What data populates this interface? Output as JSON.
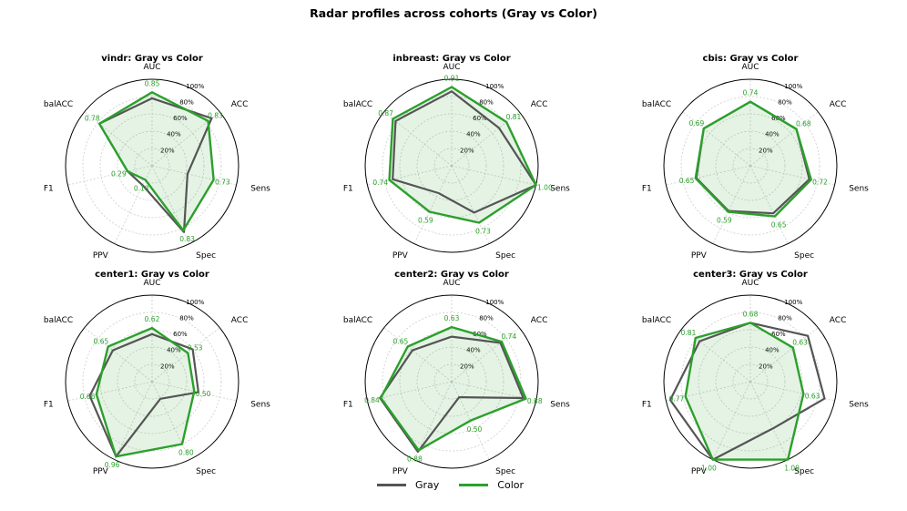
{
  "figure_title": "Radar profiles across cohorts (Gray vs Color)",
  "legend": {
    "gray_label": "Gray",
    "color_label": "Color"
  },
  "colors": {
    "gray": "#555555",
    "color": "#2ca02c",
    "fill": "#2ca02c",
    "grid": "#cccccc",
    "ring": "#000000"
  },
  "chart_data": [
    {
      "type": "radar",
      "title": "vindr: Gray vs Color",
      "axes": [
        "AUC",
        "ACC",
        "Sens",
        "Spec",
        "PPV",
        "F1",
        "balACC"
      ],
      "radial_ticks": [
        "20%",
        "40%",
        "60%",
        "80%",
        "100%"
      ],
      "rlim": [
        0,
        1
      ],
      "series": [
        {
          "name": "Gray",
          "values": [
            0.78,
            0.88,
            0.42,
            0.85,
            0.25,
            0.29,
            0.78
          ]
        },
        {
          "name": "Color",
          "values": [
            0.85,
            0.83,
            0.73,
            0.83,
            0.18,
            0.29,
            0.78
          ]
        }
      ],
      "value_labels": [
        "0.85",
        "0.83",
        "0.73",
        "0.83",
        "0.18",
        "0.29",
        "0.78"
      ]
    },
    {
      "type": "radar",
      "title": "inbreast: Gray vs Color",
      "axes": [
        "AUC",
        "ACC",
        "Sens",
        "Spec",
        "PPV",
        "F1",
        "balACC"
      ],
      "radial_ticks": [
        "20%",
        "40%",
        "60%",
        "80%",
        "100%"
      ],
      "rlim": [
        0,
        1
      ],
      "series": [
        {
          "name": "Gray",
          "values": [
            0.86,
            0.7,
            1.0,
            0.6,
            0.35,
            0.7,
            0.83
          ]
        },
        {
          "name": "Color",
          "values": [
            0.91,
            0.81,
            1.0,
            0.73,
            0.59,
            0.74,
            0.87
          ]
        }
      ],
      "value_labels": [
        "0.91",
        "0.81",
        "1.00",
        "0.73",
        "0.59",
        "0.74",
        "0.87"
      ]
    },
    {
      "type": "radar",
      "title": "cbis: Gray vs Color",
      "axes": [
        "AUC",
        "ACC",
        "Sens",
        "Spec",
        "PPV",
        "F1",
        "balACC"
      ],
      "radial_ticks": [
        "20%",
        "40%",
        "60%",
        "80%",
        "100%"
      ],
      "rlim": [
        0,
        1
      ],
      "series": [
        {
          "name": "Gray",
          "values": [
            0.74,
            0.68,
            0.7,
            0.61,
            0.58,
            0.64,
            0.69
          ]
        },
        {
          "name": "Color",
          "values": [
            0.74,
            0.68,
            0.72,
            0.65,
            0.59,
            0.65,
            0.69
          ]
        }
      ],
      "value_labels": [
        "0.74",
        "0.68",
        "0.72",
        "0.65",
        "0.59",
        "0.65",
        "0.69"
      ]
    },
    {
      "type": "radar",
      "title": "center1: Gray vs Color",
      "axes": [
        "AUC",
        "ACC",
        "Sens",
        "Spec",
        "PPV",
        "F1",
        "balACC"
      ],
      "radial_ticks": [
        "20%",
        "40%",
        "60%",
        "80%",
        "100%"
      ],
      "rlim": [
        0,
        1
      ],
      "series": [
        {
          "name": "Gray",
          "values": [
            0.55,
            0.6,
            0.55,
            0.22,
            0.96,
            0.74,
            0.58
          ]
        },
        {
          "name": "Color",
          "values": [
            0.62,
            0.53,
            0.5,
            0.8,
            0.96,
            0.66,
            0.65
          ]
        }
      ],
      "value_labels": [
        "0.62",
        "0.53",
        "0.50",
        "0.80",
        "0.96",
        "0.66",
        "0.65"
      ]
    },
    {
      "type": "radar",
      "title": "center2: Gray vs Color",
      "axes": [
        "AUC",
        "ACC",
        "Sens",
        "Spec",
        "PPV",
        "F1",
        "balACC"
      ],
      "radial_ticks": [
        "20%",
        "40%",
        "60%",
        "80%",
        "100%"
      ],
      "rlim": [
        0,
        1
      ],
      "series": [
        {
          "name": "Gray",
          "values": [
            0.52,
            0.72,
            0.85,
            0.2,
            0.9,
            0.85,
            0.58
          ]
        },
        {
          "name": "Color",
          "values": [
            0.63,
            0.74,
            0.88,
            0.5,
            0.88,
            0.84,
            0.65
          ]
        }
      ],
      "value_labels": [
        "0.63",
        "0.74",
        "0.88",
        "0.50",
        "0.88",
        "0.84",
        "0.65"
      ]
    },
    {
      "type": "radar",
      "title": "center3: Gray vs Color",
      "axes": [
        "AUC",
        "ACC",
        "Sens",
        "Spec",
        "PPV",
        "F1",
        "balACC"
      ],
      "radial_ticks": [
        "20%",
        "40%",
        "60%",
        "80%",
        "100%"
      ],
      "rlim": [
        0,
        1
      ],
      "series": [
        {
          "name": "Gray",
          "values": [
            0.68,
            0.85,
            0.88,
            0.6,
            1.0,
            0.95,
            0.75
          ]
        },
        {
          "name": "Color",
          "values": [
            0.68,
            0.63,
            0.63,
            1.0,
            1.0,
            0.77,
            0.81
          ]
        }
      ],
      "value_labels": [
        "0.68",
        "0.63",
        "0.63",
        "1.00",
        "1.00",
        "0.77",
        "0.81"
      ]
    }
  ]
}
